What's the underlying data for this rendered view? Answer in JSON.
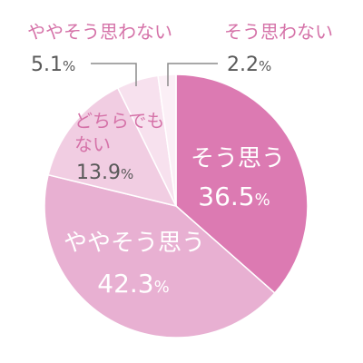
{
  "chart_data": {
    "type": "pie",
    "categories": [
      "そう思う",
      "ややそう思う",
      "どちらでもない",
      "ややそう思わない",
      "そう思わない"
    ],
    "values": [
      36.5,
      42.3,
      13.9,
      5.1,
      2.2
    ],
    "value_labels": [
      "36.5",
      "42.3",
      "13.9",
      "5.1",
      "2.2"
    ],
    "unit": "%",
    "category_lines": {
      "neutral": [
        "どちらでも",
        "ない"
      ]
    },
    "colors": [
      "#dc7ab2",
      "#e8b0d2",
      "#f1cde2",
      "#f7e1ee",
      "#fbeff6"
    ],
    "start_angle_deg": 0,
    "direction": "clockwise"
  }
}
